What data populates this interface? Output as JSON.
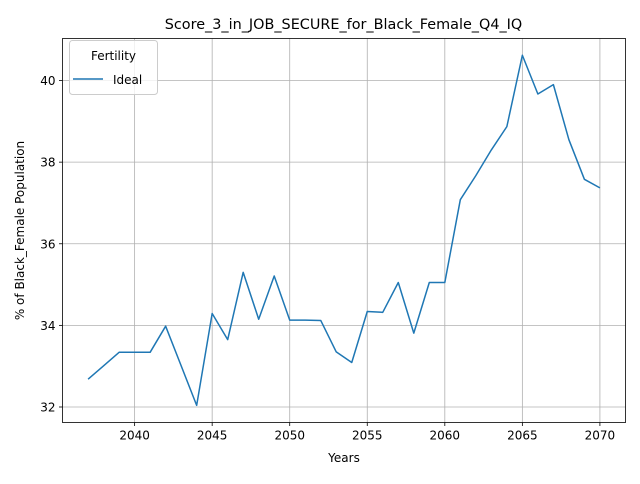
{
  "chart_data": {
    "type": "line",
    "title": "Score_3_in_JOB_SECURE_for_Black_Female_Q4_IQ",
    "xlabel": "Years",
    "ylabel": "% of Black_Female Population",
    "xlim": [
      2035.35,
      2071.65
    ],
    "ylim": [
      31.62,
      41.03
    ],
    "x_ticks": [
      2040,
      2045,
      2050,
      2055,
      2060,
      2065,
      2070
    ],
    "y_ticks": [
      32,
      34,
      36,
      38,
      40
    ],
    "grid": true,
    "legend": {
      "title": "Fertility",
      "position": "top-left"
    },
    "series": [
      {
        "name": "Ideal",
        "color": "#1f77b4",
        "x": [
          2037,
          2038,
          2039,
          2040,
          2041,
          2042,
          2043,
          2044,
          2045,
          2046,
          2047,
          2048,
          2049,
          2050,
          2051,
          2052,
          2053,
          2054,
          2055,
          2056,
          2057,
          2058,
          2059,
          2060,
          2061,
          2062,
          2063,
          2064,
          2065,
          2066,
          2067,
          2068,
          2069,
          2070
        ],
        "values": [
          32.68,
          33.01,
          33.34,
          33.34,
          33.34,
          33.98,
          33.01,
          32.04,
          34.29,
          33.65,
          35.3,
          34.15,
          35.21,
          34.13,
          34.13,
          34.12,
          33.35,
          33.09,
          34.34,
          34.32,
          35.05,
          33.81,
          35.05,
          35.05,
          37.08,
          37.67,
          38.3,
          38.87,
          40.62,
          39.67,
          39.9,
          38.55,
          37.58,
          37.37
        ]
      }
    ]
  }
}
